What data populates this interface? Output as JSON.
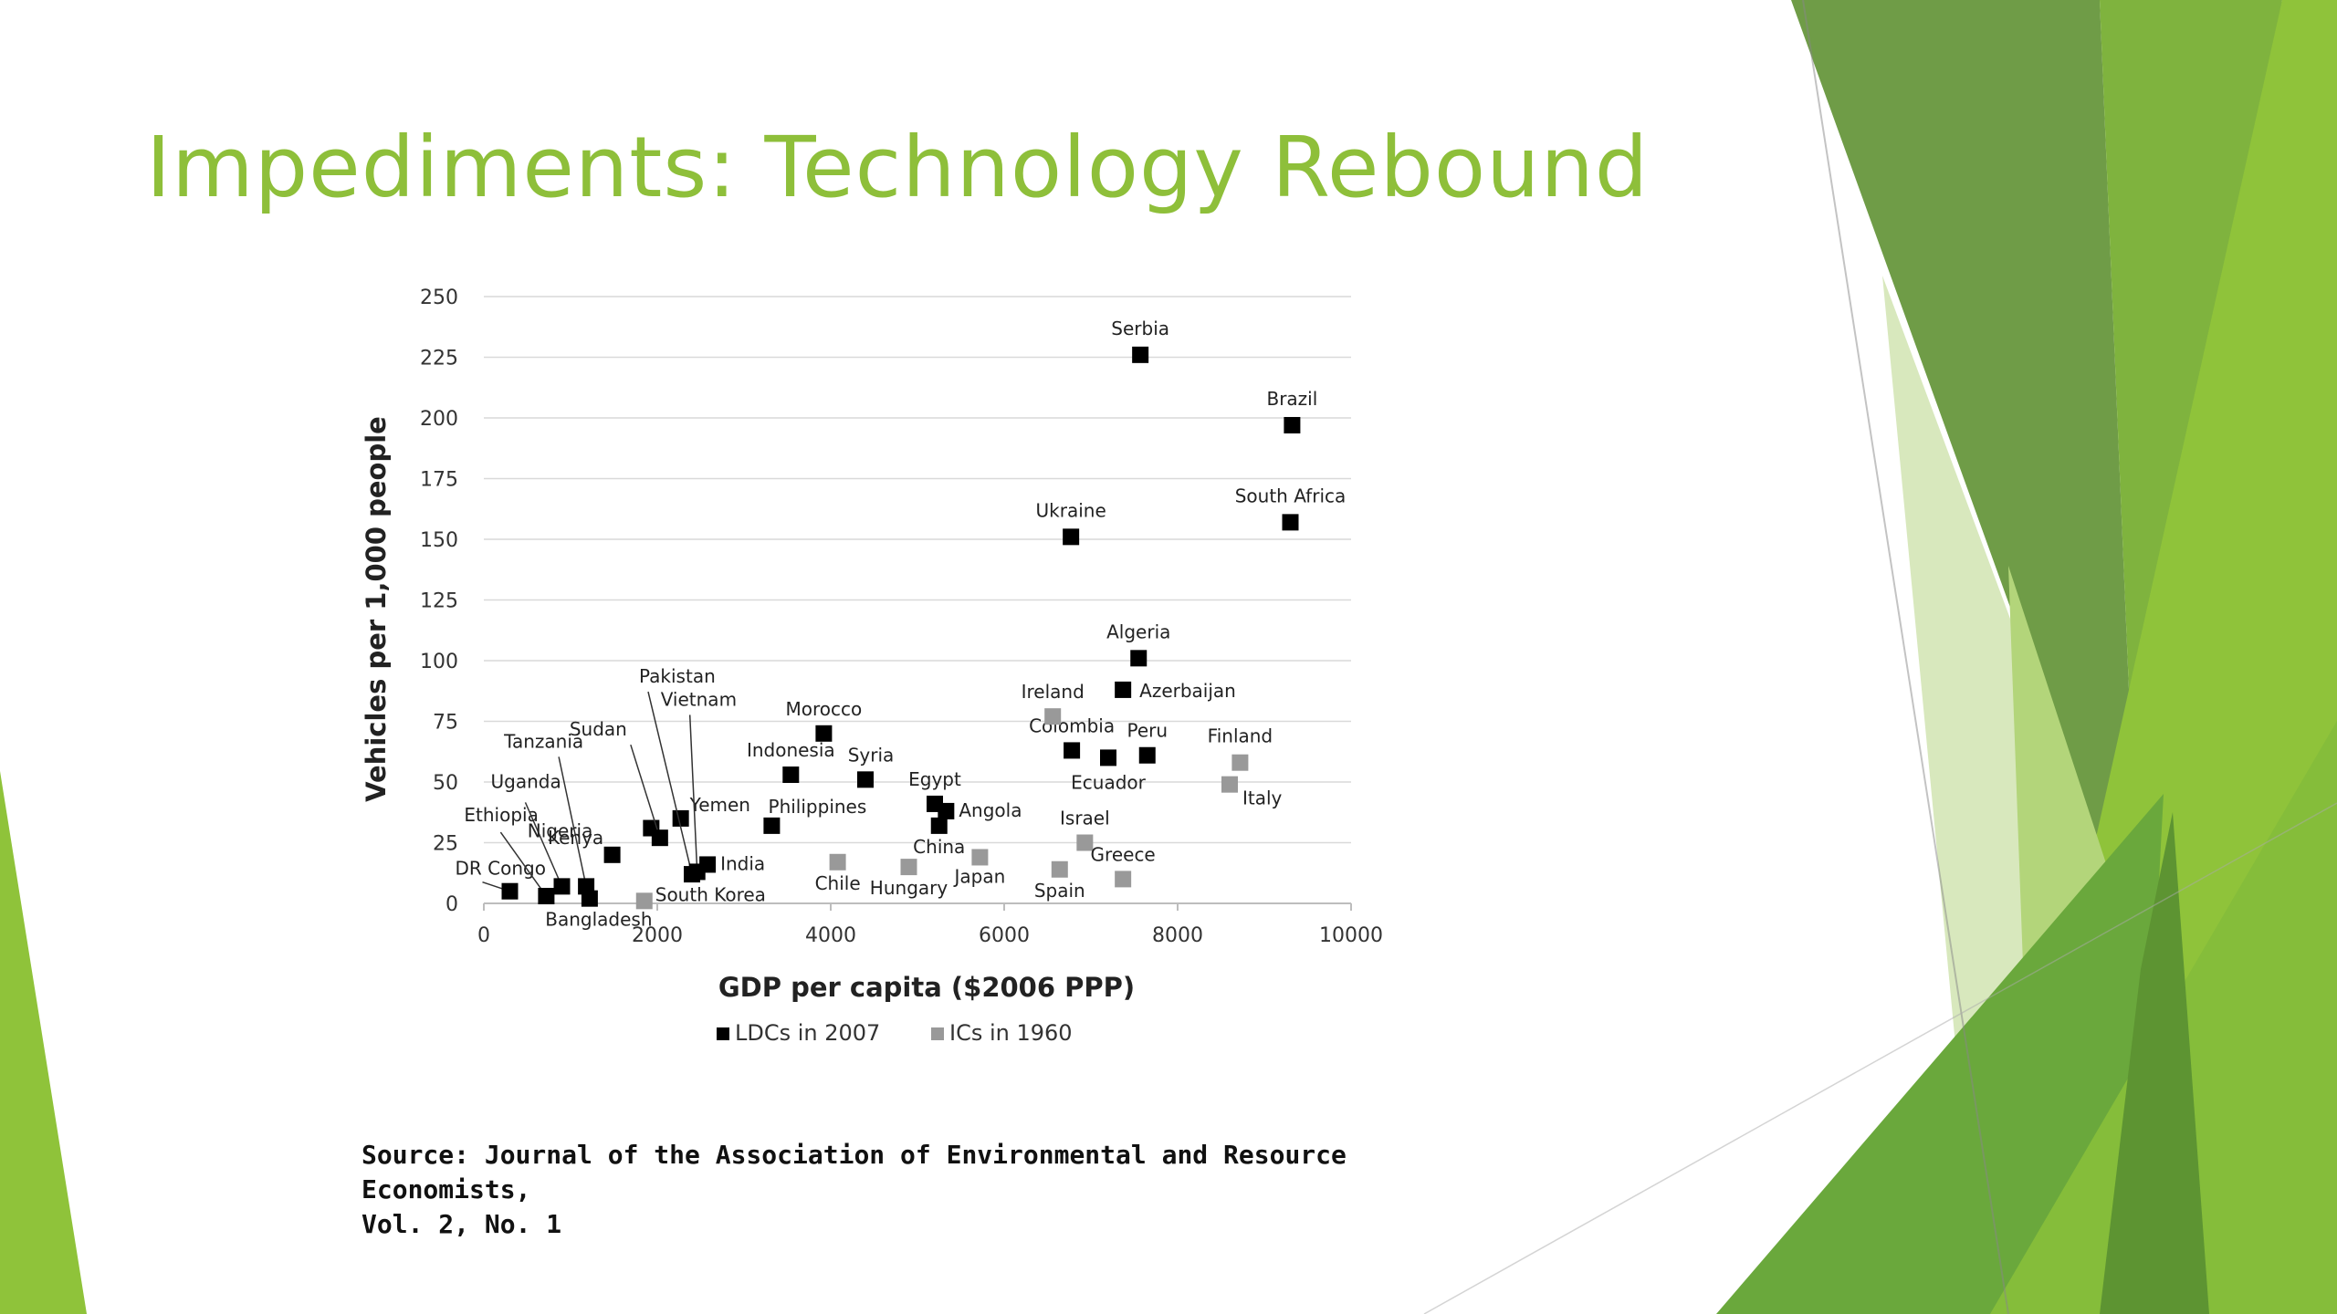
{
  "slide": {
    "title": "Impediments: Technology Rebound",
    "source_line1": "Source: Journal of the Association of Environmental and Resource Economists,",
    "source_line2": "Vol. 2, No. 1",
    "accent_color": "#8ebf3a"
  },
  "chart_data": {
    "type": "scatter",
    "title": "",
    "xlabel": "GDP per capita ($2006 PPP)",
    "ylabel": "Vehicles per 1,000 people",
    "xlim": [
      0,
      10000
    ],
    "ylim": [
      0,
      250
    ],
    "xticks": [
      0,
      2000,
      4000,
      6000,
      8000,
      10000
    ],
    "yticks": [
      0,
      25,
      50,
      75,
      100,
      125,
      150,
      175,
      200,
      225,
      250
    ],
    "grid": "horizontal",
    "legend": "bottom",
    "series": [
      {
        "name": "LDCs in 2007",
        "color": "#000000",
        "points": [
          {
            "label": "DR Congo",
            "x": 300,
            "y": 5
          },
          {
            "label": "Ethiopia",
            "x": 720,
            "y": 3
          },
          {
            "label": "Uganda",
            "x": 900,
            "y": 7
          },
          {
            "label": "Tanzania",
            "x": 1180,
            "y": 7
          },
          {
            "label": "Bangladesh",
            "x": 1220,
            "y": 2
          },
          {
            "label": "Kenya",
            "x": 1480,
            "y": 20
          },
          {
            "label": "Nigeria",
            "x": 1930,
            "y": 31
          },
          {
            "label": "Sudan",
            "x": 2030,
            "y": 27
          },
          {
            "label": "Yemen",
            "x": 2270,
            "y": 35
          },
          {
            "label": "Pakistan",
            "x": 2400,
            "y": 12
          },
          {
            "label": "Vietnam",
            "x": 2460,
            "y": 13
          },
          {
            "label": "India",
            "x": 2580,
            "y": 16
          },
          {
            "label": "Philippines",
            "x": 3320,
            "y": 32
          },
          {
            "label": "Indonesia",
            "x": 3540,
            "y": 53
          },
          {
            "label": "Morocco",
            "x": 3920,
            "y": 70
          },
          {
            "label": "Syria",
            "x": 4400,
            "y": 51
          },
          {
            "label": "Egypt",
            "x": 5200,
            "y": 41
          },
          {
            "label": "Angola",
            "x": 5330,
            "y": 38
          },
          {
            "label": "China",
            "x": 5250,
            "y": 32
          },
          {
            "label": "Ukraine",
            "x": 6770,
            "y": 151
          },
          {
            "label": "Colombia",
            "x": 6780,
            "y": 63
          },
          {
            "label": "Ecuador",
            "x": 7200,
            "y": 60
          },
          {
            "label": "Azerbaijan",
            "x": 7370,
            "y": 88
          },
          {
            "label": "Algeria",
            "x": 7550,
            "y": 101
          },
          {
            "label": "Serbia",
            "x": 7570,
            "y": 226
          },
          {
            "label": "Peru",
            "x": 7650,
            "y": 61
          },
          {
            "label": "South Africa",
            "x": 9300,
            "y": 157
          },
          {
            "label": "Brazil",
            "x": 9320,
            "y": 197
          }
        ]
      },
      {
        "name": "ICs in 1960",
        "color": "#999999",
        "points": [
          {
            "label": "South Korea",
            "x": 1850,
            "y": 1
          },
          {
            "label": "Chile",
            "x": 4080,
            "y": 17
          },
          {
            "label": "Hungary",
            "x": 4900,
            "y": 15
          },
          {
            "label": "Japan",
            "x": 5720,
            "y": 19
          },
          {
            "label": "Ireland",
            "x": 6560,
            "y": 77
          },
          {
            "label": "Spain",
            "x": 6640,
            "y": 14
          },
          {
            "label": "Israel",
            "x": 6930,
            "y": 25
          },
          {
            "label": "Greece",
            "x": 7370,
            "y": 10
          },
          {
            "label": "Italy",
            "x": 8600,
            "y": 49
          },
          {
            "label": "Finland",
            "x": 8720,
            "y": 58
          }
        ]
      }
    ]
  }
}
